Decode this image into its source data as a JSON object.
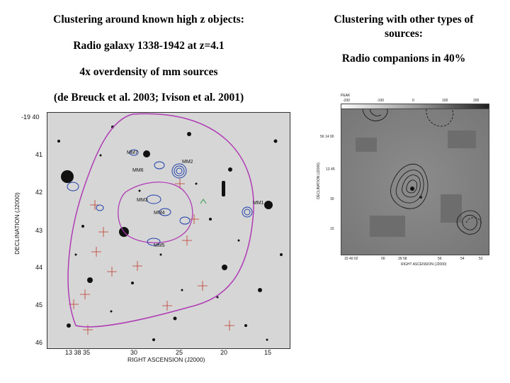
{
  "left_column": {
    "heading": "Clustering around known high z objects:",
    "object_line": "Radio galaxy 1338-1942 at z=4.1",
    "overdensity_line": "4x overdensity of mm sources",
    "reference_line": "(de Breuck et al. 2003; Ivison et al. 2001)"
  },
  "right_column": {
    "heading_line1": "Clustering  with other types of",
    "heading_line2": "sources:",
    "companions_line": "Radio companions in 40%"
  },
  "sky_map": {
    "top_left_dec": "-19 40",
    "dec_ticks": [
      "41",
      "42",
      "43",
      "44",
      "45",
      "46"
    ],
    "ra_ticks": [
      "13 38 35",
      "30",
      "25",
      "20",
      "15"
    ],
    "xlabel": "RIGHT ASCENSION (J2000)",
    "ylabel": "DECLINATION (J2000)",
    "source_labels": [
      "MM7",
      "MM2",
      "MM6",
      "MM3",
      "MM4",
      "MM1",
      "MM5"
    ]
  },
  "radio_panel": {
    "scale_unit": "PEAK",
    "scale_ticks": [
      "-200",
      "-100",
      "0",
      "100",
      "200"
    ],
    "dec_ticks": [
      "56 14 00",
      "13 45",
      "30",
      "15"
    ],
    "ra_ticks": [
      "15 40 02",
      "00",
      "39 58",
      "56",
      "54",
      "52"
    ],
    "xlabel": "RIGHT ASCENSION (J2000)",
    "ylabel": "DECLINATION (J2000)"
  }
}
